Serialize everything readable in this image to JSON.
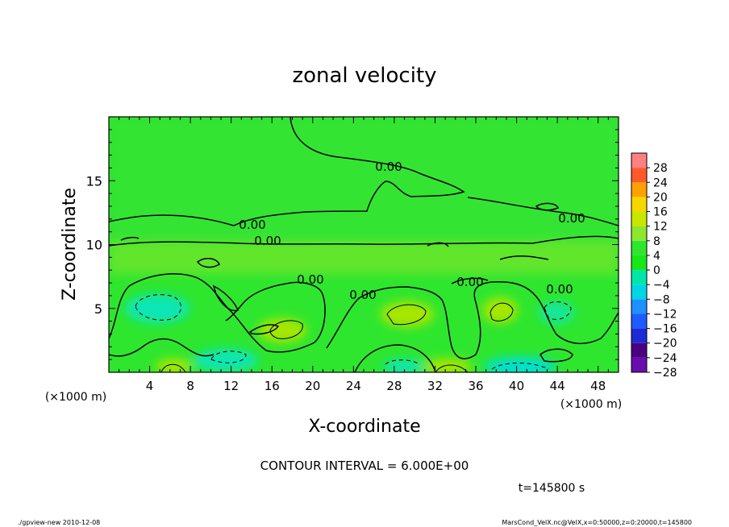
{
  "chart_data": {
    "type": "heatmap",
    "title": "zonal velocity",
    "xlabel": "X-coordinate",
    "ylabel": "Z-coordinate",
    "x_unit_label": "(×1000 m)",
    "y_unit_label": "(×1000 m)",
    "xlim": [
      0,
      50
    ],
    "ylim": [
      0,
      20
    ],
    "x_ticks": [
      4,
      8,
      12,
      16,
      20,
      24,
      28,
      32,
      36,
      40,
      44,
      48
    ],
    "y_ticks": [
      5,
      10,
      15
    ],
    "x_tick_labels": [
      "4",
      "8",
      "12",
      "16",
      "20",
      "24",
      "28",
      "32",
      "36",
      "40",
      "44",
      "48"
    ],
    "y_tick_labels": [
      "5",
      "10",
      "15"
    ],
    "colorbar": {
      "levels": [
        -28,
        -24,
        -20,
        -16,
        -12,
        -8,
        -4,
        0,
        4,
        8,
        12,
        16,
        20,
        24,
        28
      ],
      "labels": [
        "28",
        "24",
        "20",
        "16",
        "12",
        "8",
        "4",
        "0",
        "−4",
        "−8",
        "−12",
        "−16",
        "−20",
        "−24",
        "−28"
      ],
      "colors": [
        "#6a0dad",
        "#4b0082",
        "#1e2ad4",
        "#1f5cff",
        "#1e90ff",
        "#00d5e8",
        "#00e6a8",
        "#19e619",
        "#2ee62e",
        "#8ee62e",
        "#c8e600",
        "#f5d800",
        "#ffa000",
        "#ff5a2a",
        "#ff8080"
      ]
    },
    "contour_labels": [
      "0.00",
      "0.00",
      "0.00",
      "0.00",
      "0.00",
      "0.00",
      "0.00",
      "0.00"
    ],
    "contour_interval_text": "CONTOUR INTERVAL = 6.000E+00",
    "time_text": "t=145800 s",
    "cells": [
      {
        "x": 5,
        "z": 4.5,
        "value": -8
      },
      {
        "x": 17,
        "z": 3.5,
        "value": 8
      },
      {
        "x": 29,
        "z": 4.5,
        "value": 8
      },
      {
        "x": 39,
        "z": 4.8,
        "value": 8
      },
      {
        "x": 44,
        "z": 4.5,
        "value": -6
      },
      {
        "x": 11,
        "z": 1.2,
        "value": -6
      },
      {
        "x": 6,
        "z": 0.8,
        "value": 6
      },
      {
        "x": 34,
        "z": 0.8,
        "value": 6
      },
      {
        "x": 40,
        "z": 0.8,
        "value": -8
      },
      {
        "x": 25,
        "z": 9,
        "value": 4
      },
      {
        "x": 25,
        "z": 16,
        "value": 1
      },
      {
        "x": 25,
        "z": 12,
        "value": 0
      }
    ]
  },
  "footer": {
    "left": "./gpview-new  2010-12-08",
    "right": "MarsCond_VelX.nc@VelX,x=0:50000,z=0:20000,t=145800"
  }
}
